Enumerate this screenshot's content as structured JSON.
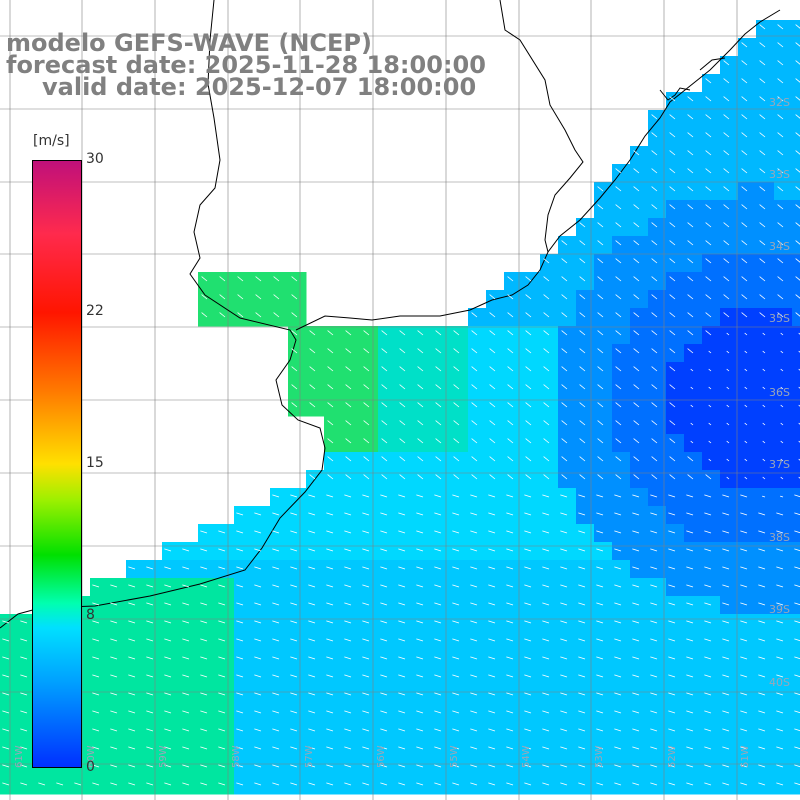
{
  "title": {
    "model": "modelo GEFS-WAVE (NCEP)",
    "forecast": "forecast date: 2025-11-28 18:00:00",
    "valid": "valid date: 2025-12-07 18:00:00"
  },
  "colorbar": {
    "unit": "[m/s]",
    "ticks": [
      "30",
      "22",
      "15",
      "8",
      "0"
    ],
    "colors": [
      "#0030ff",
      "#00a0ff",
      "#00e0ff",
      "#00ffb0",
      "#00e000",
      "#9cf000",
      "#ffe000",
      "#ff7a00",
      "#ff1500",
      "#ff2a4d",
      "#c0107a"
    ]
  },
  "map": {
    "lat_labels": [
      "32S",
      "33S",
      "34S",
      "35S",
      "36S",
      "37S",
      "38S",
      "39S",
      "40S"
    ],
    "lon_labels": [
      "61W",
      "60W",
      "59W",
      "58W",
      "57W",
      "56W",
      "55W",
      "54W",
      "53W",
      "52W",
      "51W"
    ],
    "land_color": "#ffffff",
    "grid_color": "#808080",
    "coast_color": "#000000",
    "arrow_color": "#ffffff"
  }
}
